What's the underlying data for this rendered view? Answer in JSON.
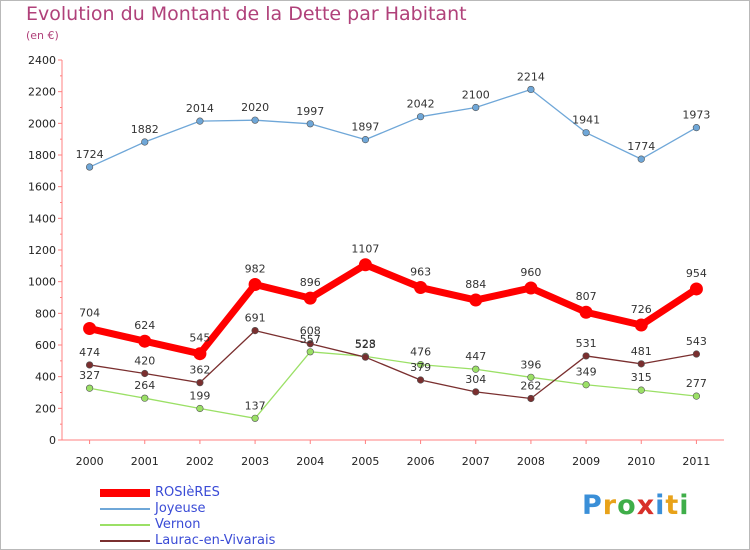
{
  "header": {
    "title": "Evolution du Montant de la Dette par Habitant",
    "subtitle": "(en €)"
  },
  "logo": {
    "text": "Proxiti"
  },
  "chart_data": {
    "type": "line",
    "title": "Evolution du Montant de la Dette par Habitant",
    "subtitle": "(en €)",
    "xlabel": "",
    "ylabel": "",
    "x": [
      "2000",
      "2001",
      "2002",
      "2003",
      "2004",
      "2005",
      "2006",
      "2007",
      "2008",
      "2009",
      "2010",
      "2011"
    ],
    "yticks": [
      "0",
      "200",
      "400",
      "600",
      "800",
      "1000",
      "1200",
      "1400",
      "1600",
      "1800",
      "2000",
      "2200",
      "2400"
    ],
    "ylim": [
      0,
      2400
    ],
    "grid": false,
    "legend": "bottom-left",
    "series": [
      {
        "name": "ROSIèRES",
        "color": "#ff0000",
        "values": [
          704,
          624,
          545,
          982,
          896,
          1107,
          963,
          884,
          960,
          807,
          726,
          954
        ]
      },
      {
        "name": "Joyeuse",
        "color": "#6fa7d8",
        "values": [
          1724,
          1882,
          2014,
          2020,
          1997,
          1897,
          2042,
          2100,
          2214,
          1941,
          1774,
          1973
        ]
      },
      {
        "name": "Vernon",
        "color": "#9be066",
        "values": [
          327,
          264,
          199,
          137,
          557,
          528,
          476,
          447,
          396,
          349,
          315,
          277
        ]
      },
      {
        "name": "Laurac-en-Vivarais",
        "color": "#7a2f2f",
        "values": [
          474,
          420,
          362,
          691,
          608,
          523,
          379,
          304,
          262,
          531,
          481,
          543
        ]
      }
    ]
  }
}
